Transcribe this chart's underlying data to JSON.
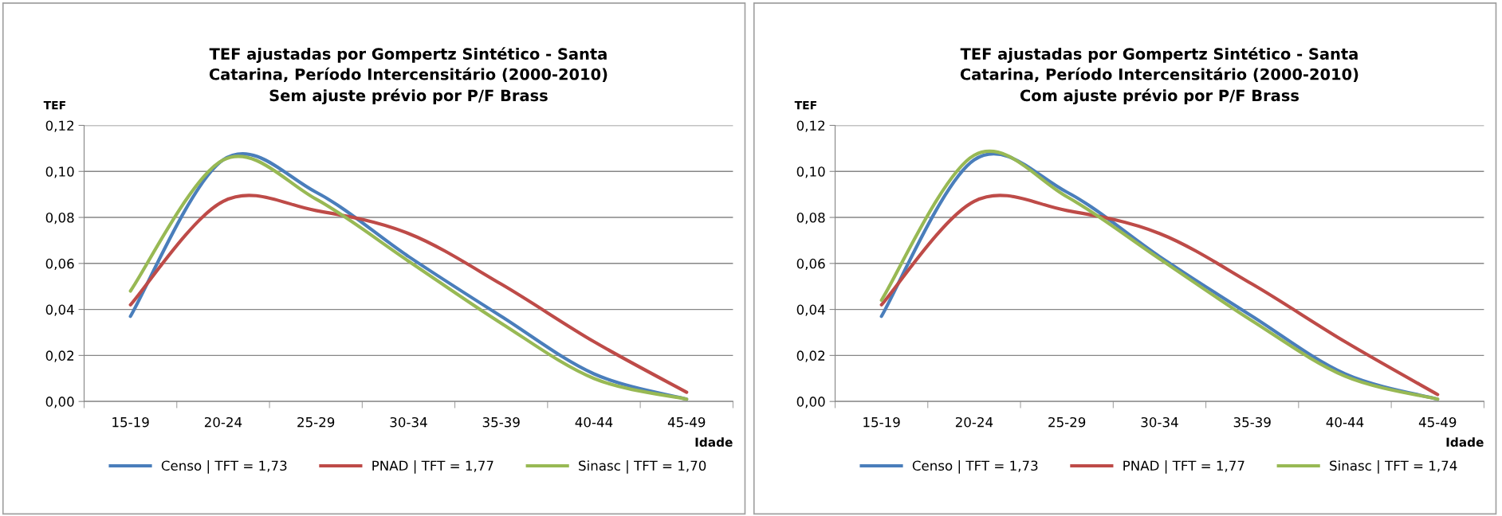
{
  "chart_data": [
    {
      "type": "line",
      "title": "TEF ajustadas por Gompertz Sintético - Santa\nCatarina, Período Intercensitário (2000-2010)\nSem ajuste prévio por P/F Brass",
      "xlabel": "Idade",
      "ylabel": "TEF",
      "categories": [
        "15-19",
        "20-24",
        "25-29",
        "30-34",
        "35-39",
        "40-44",
        "45-49"
      ],
      "series": [
        {
          "name": "Censo | TFT = 1,73",
          "color": "#4a7ebb",
          "values": [
            0.037,
            0.105,
            0.091,
            0.063,
            0.037,
            0.012,
            0.001
          ]
        },
        {
          "name": "PNAD | TFT = 1,77",
          "color": "#be4b48",
          "values": [
            0.042,
            0.087,
            0.083,
            0.073,
            0.051,
            0.026,
            0.004
          ]
        },
        {
          "name": "Sinasc | TFT = 1,70",
          "color": "#98b954",
          "values": [
            0.048,
            0.105,
            0.088,
            0.061,
            0.034,
            0.01,
            0.001
          ]
        }
      ],
      "ylim": [
        0,
        0.12
      ],
      "yticks": [
        {
          "value": 0,
          "label": "0,00"
        },
        {
          "value": 0.02,
          "label": "0,02"
        },
        {
          "value": 0.04,
          "label": "0,04"
        },
        {
          "value": 0.06,
          "label": "0,06"
        },
        {
          "value": 0.08,
          "label": "0,08"
        },
        {
          "value": 0.1,
          "label": "0,10"
        },
        {
          "value": 0.12,
          "label": "0,12"
        }
      ],
      "grid": "y",
      "legend": "bottom"
    },
    {
      "type": "line",
      "title": "TEF ajustadas por Gompertz Sintético - Santa\nCatarina, Período Intercensitário (2000-2010)\nCom ajuste prévio por P/F Brass",
      "xlabel": "Idade",
      "ylabel": "TEF",
      "categories": [
        "15-19",
        "20-24",
        "25-29",
        "30-34",
        "35-39",
        "40-44",
        "45-49"
      ],
      "series": [
        {
          "name": "Censo | TFT = 1,73",
          "color": "#4a7ebb",
          "values": [
            0.037,
            0.105,
            0.091,
            0.063,
            0.037,
            0.012,
            0.001
          ]
        },
        {
          "name": "PNAD | TFT = 1,77",
          "color": "#be4b48",
          "values": [
            0.042,
            0.087,
            0.083,
            0.073,
            0.051,
            0.026,
            0.003
          ]
        },
        {
          "name": "Sinasc | TFT = 1,74",
          "color": "#98b954",
          "values": [
            0.044,
            0.107,
            0.089,
            0.062,
            0.035,
            0.011,
            0.001
          ]
        }
      ],
      "ylim": [
        0,
        0.12
      ],
      "yticks": [
        {
          "value": 0,
          "label": "0,00"
        },
        {
          "value": 0.02,
          "label": "0,02"
        },
        {
          "value": 0.04,
          "label": "0,04"
        },
        {
          "value": 0.06,
          "label": "0,06"
        },
        {
          "value": 0.08,
          "label": "0,08"
        },
        {
          "value": 0.1,
          "label": "0,10"
        },
        {
          "value": 0.12,
          "label": "0,12"
        }
      ],
      "grid": "y",
      "legend": "bottom"
    }
  ]
}
